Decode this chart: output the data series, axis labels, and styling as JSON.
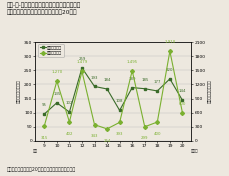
{
  "title1": "図２-１-７　注意報等発令延べ日数、被害届出",
  "title2": "　　　　　人数の推移（平成９年～20年）",
  "ylabel_left": "発令延べ日数（日）",
  "ylabel_right": "被害届出人数（人）",
  "years": [
    9,
    10,
    11,
    12,
    13,
    14,
    15,
    16,
    17,
    18,
    19,
    20
  ],
  "year_labels": [
    "9",
    "10",
    "11",
    "12",
    "13",
    "14",
    "15",
    "16",
    "17",
    "18",
    "19",
    "20"
  ],
  "days": [
    95,
    135,
    102,
    259,
    193,
    184,
    108,
    189,
    185,
    177,
    220,
    144
  ],
  "days_labels": [
    "95",
    "135",
    "102",
    "259",
    "193",
    "184",
    "108",
    "189",
    "185",
    "177",
    "220",
    "144"
  ],
  "days_label_offsets": [
    5,
    5,
    5,
    5,
    5,
    5,
    5,
    5,
    5,
    5,
    5,
    5
  ],
  "persons": [
    315,
    1270,
    402,
    1479,
    343,
    254,
    393,
    1495,
    299,
    400,
    1910,
    600
  ],
  "persons_labels": [
    "315",
    "1,270",
    "402",
    "1,479",
    "343",
    "254",
    "393",
    "1,495",
    "299",
    "400",
    "1,910",
    "600"
  ],
  "persons_label_offsets": [
    -7,
    5,
    -7,
    5,
    -7,
    -7,
    -7,
    5,
    -7,
    -7,
    5,
    5
  ],
  "days_color": "#3a6b2a",
  "persons_color": "#7ab030",
  "ylim_left": [
    0,
    350
  ],
  "ylim_right": [
    0,
    2100
  ],
  "yticks_left": [
    0,
    50,
    100,
    150,
    200,
    250,
    300,
    350
  ],
  "yticks_right": [
    0,
    300,
    600,
    900,
    1200,
    1500,
    1800,
    2100
  ],
  "legend_days": "発令延べ日数",
  "legend_persons": "被害届出人数",
  "source": "資料：環境省「平成20年光化学大気汚染関係資料」",
  "bg_color": "#ede8df"
}
